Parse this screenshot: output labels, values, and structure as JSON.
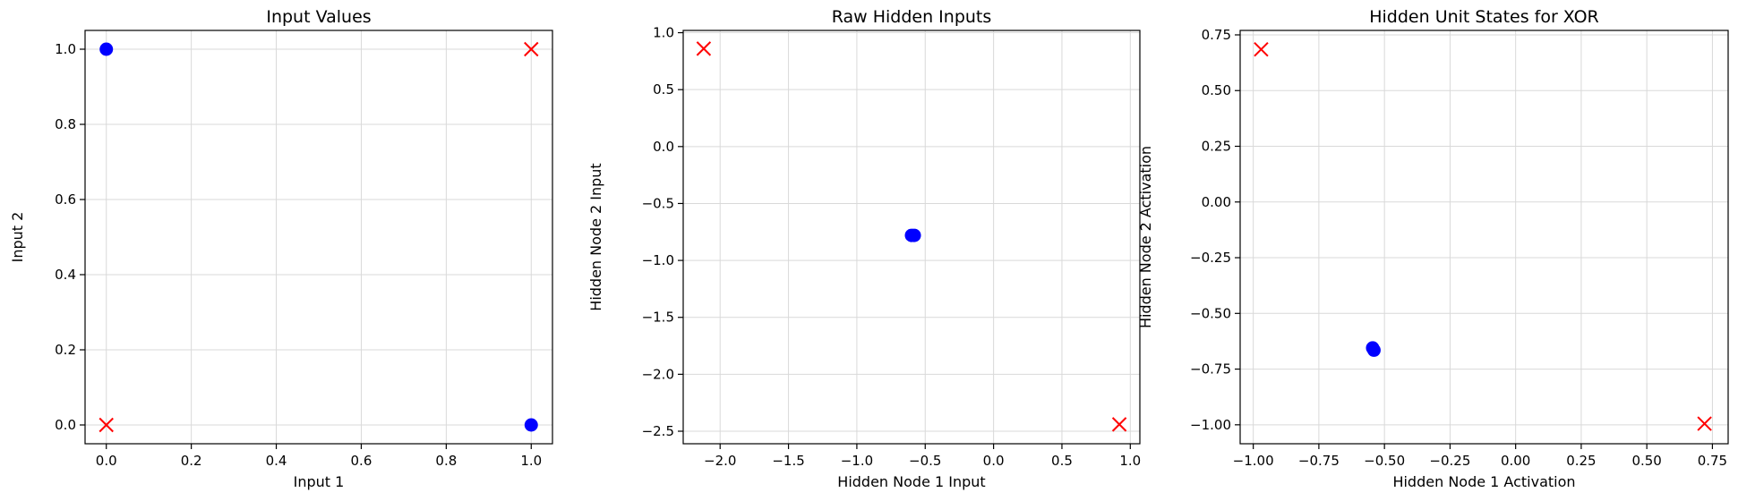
{
  "chart_data": [
    {
      "type": "scatter",
      "title": "Input Values",
      "xlabel": "Input 1",
      "ylabel": "Input 2",
      "xlim": [
        -0.05,
        1.05
      ],
      "ylim": [
        -0.05,
        1.05
      ],
      "xticks": [
        0.0,
        0.2,
        0.4,
        0.6,
        0.8,
        1.0
      ],
      "xtick_labels": [
        "0.0",
        "0.2",
        "0.4",
        "0.6",
        "0.8",
        "1.0"
      ],
      "yticks": [
        0.0,
        0.2,
        0.4,
        0.6,
        0.8,
        1.0
      ],
      "ytick_labels": [
        "0.0",
        "0.2",
        "0.4",
        "0.6",
        "0.8",
        "1.0"
      ],
      "grid": true,
      "series": [
        {
          "marker": "circle",
          "color": "#0000ff",
          "points": [
            [
              0,
              1
            ],
            [
              1,
              0
            ]
          ]
        },
        {
          "marker": "x",
          "color": "#ff0000",
          "points": [
            [
              0,
              0
            ],
            [
              1,
              1
            ]
          ]
        }
      ]
    },
    {
      "type": "scatter",
      "title": "Raw Hidden Inputs",
      "xlabel": "Hidden Node 1 Input",
      "ylabel": "Hidden Node 2 Input",
      "xlim": [
        -2.27,
        1.07
      ],
      "ylim": [
        -2.61,
        1.02
      ],
      "xticks": [
        -2.0,
        -1.5,
        -1.0,
        -0.5,
        0.0,
        0.5,
        1.0
      ],
      "xtick_labels": [
        "−2.0",
        "−1.5",
        "−1.0",
        "−0.5",
        "0.0",
        "0.5",
        "1.0"
      ],
      "yticks": [
        -2.5,
        -2.0,
        -1.5,
        -1.0,
        -0.5,
        0.0,
        0.5,
        1.0
      ],
      "ytick_labels": [
        "−2.5",
        "−2.0",
        "−1.5",
        "−1.0",
        "−0.5",
        "0.0",
        "0.5",
        "1.0"
      ],
      "grid": true,
      "series": [
        {
          "marker": "circle",
          "color": "#0000ff",
          "points": [
            [
              -0.6,
              -0.78
            ],
            [
              -0.58,
              -0.78
            ]
          ]
        },
        {
          "marker": "x",
          "color": "#ff0000",
          "points": [
            [
              -2.12,
              0.86
            ],
            [
              0.92,
              -2.44
            ]
          ]
        }
      ]
    },
    {
      "type": "scatter",
      "title": "Hidden Unit States for XOR",
      "xlabel": "Hidden Node 1 Activation",
      "ylabel": "Hidden Node 2 Activation",
      "xlim": [
        -1.05,
        0.81
      ],
      "ylim": [
        -1.085,
        0.77
      ],
      "xticks": [
        -1.0,
        -0.75,
        -0.5,
        -0.25,
        0.0,
        0.25,
        0.5,
        0.75
      ],
      "xtick_labels": [
        "−1.00",
        "−0.75",
        "−0.50",
        "−0.25",
        "0.00",
        "0.25",
        "0.50",
        "0.75"
      ],
      "yticks": [
        -1.0,
        -0.75,
        -0.5,
        -0.25,
        0.0,
        0.25,
        0.5,
        0.75
      ],
      "ytick_labels": [
        "−1.00",
        "−0.75",
        "−0.50",
        "−0.25",
        "0.00",
        "0.25",
        "0.50",
        "0.75"
      ],
      "grid": true,
      "series": [
        {
          "marker": "circle",
          "color": "#0000ff",
          "points": [
            [
              -0.545,
              -0.655
            ],
            [
              -0.54,
              -0.665
            ]
          ]
        },
        {
          "marker": "x",
          "color": "#ff0000",
          "points": [
            [
              -0.97,
              0.685
            ],
            [
              0.72,
              -0.995
            ]
          ]
        }
      ]
    }
  ]
}
